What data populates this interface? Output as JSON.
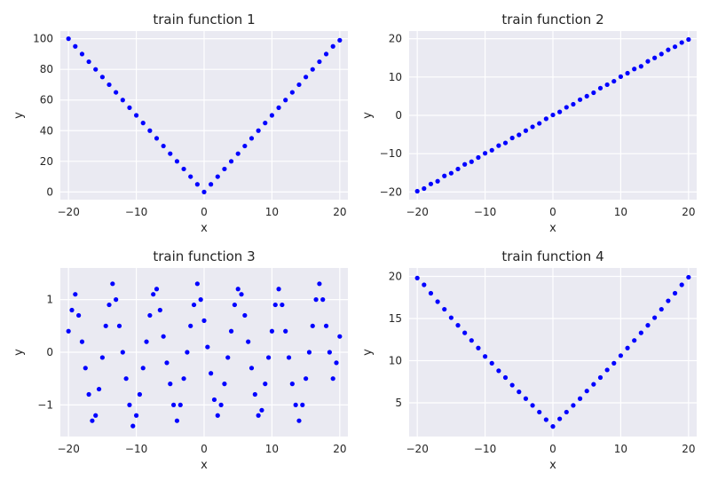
{
  "chart_data": [
    {
      "type": "scatter",
      "title": "train function 1",
      "xlabel": "x",
      "ylabel": "y",
      "xlim": [
        -21.2,
        21.2
      ],
      "ylim": [
        -5,
        105
      ],
      "xticks": [
        -20,
        -10,
        0,
        10,
        20
      ],
      "xtick_labels": [
        "−20",
        "−10",
        "0",
        "10",
        "20"
      ],
      "yticks": [
        0,
        20,
        40,
        60,
        80,
        100
      ],
      "ytick_labels": [
        "0",
        "20",
        "40",
        "60",
        "80",
        "100"
      ],
      "grid": true,
      "marker_color": "#0000ff",
      "x": [
        -20,
        -19,
        -18,
        -17,
        -16,
        -15,
        -14,
        -13,
        -12,
        -11,
        -10,
        -9,
        -8,
        -7,
        -6,
        -5,
        -4,
        -3,
        -2,
        -1,
        0,
        1,
        2,
        3,
        4,
        5,
        6,
        7,
        8,
        9,
        10,
        11,
        12,
        13,
        14,
        15,
        16,
        17,
        18,
        19,
        20
      ],
      "y": [
        100,
        95,
        90,
        85,
        80,
        75,
        70,
        65,
        60,
        55,
        50,
        45,
        40,
        35,
        30,
        25,
        20,
        15,
        10,
        5,
        0,
        5,
        10,
        15,
        20,
        25,
        30,
        35,
        40,
        45,
        50,
        55,
        60,
        65,
        70,
        75,
        80,
        85,
        90,
        95,
        99
      ]
    },
    {
      "type": "scatter",
      "title": "train function 2",
      "xlabel": "x",
      "ylabel": "y",
      "xlim": [
        -21.2,
        21.2
      ],
      "ylim": [
        -22,
        22
      ],
      "xticks": [
        -20,
        -10,
        0,
        10,
        20
      ],
      "xtick_labels": [
        "−20",
        "−10",
        "0",
        "10",
        "20"
      ],
      "yticks": [
        -20,
        -10,
        0,
        10,
        20
      ],
      "ytick_labels": [
        "−20",
        "−10",
        "0",
        "10",
        "20"
      ],
      "grid": true,
      "marker_color": "#0000ff",
      "x": [
        -20,
        -19,
        -18,
        -17,
        -16,
        -15,
        -14,
        -13,
        -12,
        -11,
        -10,
        -9,
        -8,
        -7,
        -6,
        -5,
        -4,
        -3,
        -2,
        -1,
        0,
        1,
        2,
        3,
        4,
        5,
        6,
        7,
        8,
        9,
        10,
        11,
        12,
        13,
        14,
        15,
        16,
        17,
        18,
        19,
        20
      ],
      "y": [
        -19.8,
        -19.1,
        -17.9,
        -17.2,
        -15.8,
        -15.1,
        -14.0,
        -12.8,
        -12.1,
        -11.0,
        -9.9,
        -9.1,
        -7.9,
        -7.2,
        -5.9,
        -5.1,
        -4.0,
        -3.0,
        -2.1,
        -0.9,
        0.1,
        0.9,
        2.1,
        2.9,
        4.1,
        5.0,
        5.9,
        7.1,
        8.0,
        8.9,
        10.1,
        11.0,
        12.1,
        12.8,
        14.1,
        15.0,
        16.0,
        17.1,
        17.9,
        19.0,
        19.8
      ]
    },
    {
      "type": "scatter",
      "title": "train function 3",
      "xlabel": "x",
      "ylabel": "y",
      "xlim": [
        -21.2,
        21.2
      ],
      "ylim": [
        -1.6,
        1.6
      ],
      "xticks": [
        -20,
        -10,
        0,
        10,
        20
      ],
      "xtick_labels": [
        "−20",
        "−10",
        "0",
        "10",
        "20"
      ],
      "yticks": [
        -1,
        0,
        1
      ],
      "ytick_labels": [
        "−1",
        "0",
        "1"
      ],
      "grid": true,
      "marker_color": "#0000ff",
      "x": [
        -20,
        -19.5,
        -19,
        -18.5,
        -18,
        -17.5,
        -17,
        -16.5,
        -16,
        -15.5,
        -15,
        -14.5,
        -14,
        -13.5,
        -13,
        -12.5,
        -12,
        -11.5,
        -11,
        -10.5,
        -10,
        -9.5,
        -9,
        -8.5,
        -8,
        -7.5,
        -7,
        -6.5,
        -6,
        -5.5,
        -5,
        -4.5,
        -4,
        -3.5,
        -3,
        -2.5,
        -2,
        -1.5,
        -1,
        -0.5,
        0,
        0.5,
        1,
        1.5,
        2,
        2.5,
        3,
        3.5,
        4,
        4.5,
        5,
        5.5,
        6,
        6.5,
        7,
        7.5,
        8,
        8.5,
        9,
        9.5,
        10,
        10.5,
        11,
        11.5,
        12,
        12.5,
        13,
        13.5,
        14,
        14.5,
        15,
        15.5,
        16,
        16.5,
        17,
        17.5,
        18,
        18.5,
        19,
        19.5,
        20
      ],
      "y": [
        0.4,
        0.8,
        1.1,
        0.7,
        0.2,
        -0.3,
        -0.8,
        -1.3,
        -1.2,
        -0.7,
        -0.1,
        0.5,
        0.9,
        1.3,
        1.0,
        0.5,
        0.0,
        -0.5,
        -1.0,
        -1.4,
        -1.2,
        -0.8,
        -0.3,
        0.2,
        0.7,
        1.1,
        1.2,
        0.8,
        0.3,
        -0.2,
        -0.6,
        -1.0,
        -1.3,
        -1.0,
        -0.5,
        0.0,
        0.5,
        0.9,
        1.3,
        1.0,
        0.6,
        0.1,
        -0.4,
        -0.9,
        -1.2,
        -1.0,
        -0.6,
        -0.1,
        0.4,
        0.9,
        1.2,
        1.1,
        0.7,
        0.2,
        -0.3,
        -0.8,
        -1.2,
        -1.1,
        -0.6,
        -0.1,
        0.4,
        0.9,
        1.2,
        0.9,
        0.4,
        -0.1,
        -0.6,
        -1.0,
        -1.3,
        -1.0,
        -0.5,
        0.0,
        0.5,
        1.0,
        1.3,
        1.0,
        0.5,
        0.0,
        -0.5,
        -0.2,
        0.3
      ]
    },
    {
      "type": "scatter",
      "title": "train function 4",
      "xlabel": "x",
      "ylabel": "y",
      "xlim": [
        -21.2,
        21.2
      ],
      "ylim": [
        1,
        21
      ],
      "xticks": [
        -20,
        -10,
        0,
        10,
        20
      ],
      "xtick_labels": [
        "−20",
        "−10",
        "0",
        "10",
        "20"
      ],
      "yticks": [
        5,
        10,
        15,
        20
      ],
      "ytick_labels": [
        "5",
        "10",
        "15",
        "20"
      ],
      "grid": true,
      "marker_color": "#0000ff",
      "x": [
        -20,
        -19,
        -18,
        -17,
        -16,
        -15,
        -14,
        -13,
        -12,
        -11,
        -10,
        -9,
        -8,
        -7,
        -6,
        -5,
        -4,
        -3,
        -2,
        -1,
        0,
        1,
        2,
        3,
        4,
        5,
        6,
        7,
        8,
        9,
        10,
        11,
        12,
        13,
        14,
        15,
        16,
        17,
        18,
        19,
        20
      ],
      "y": [
        19.8,
        19.0,
        18.0,
        17.0,
        16.1,
        15.1,
        14.2,
        13.3,
        12.4,
        11.5,
        10.5,
        9.7,
        8.8,
        8.0,
        7.1,
        6.3,
        5.5,
        4.7,
        3.9,
        3.0,
        2.2,
        3.1,
        3.9,
        4.7,
        5.5,
        6.4,
        7.2,
        8.0,
        8.9,
        9.7,
        10.6,
        11.5,
        12.4,
        13.3,
        14.2,
        15.1,
        16.1,
        17.1,
        18.0,
        19.0,
        19.9
      ]
    }
  ]
}
